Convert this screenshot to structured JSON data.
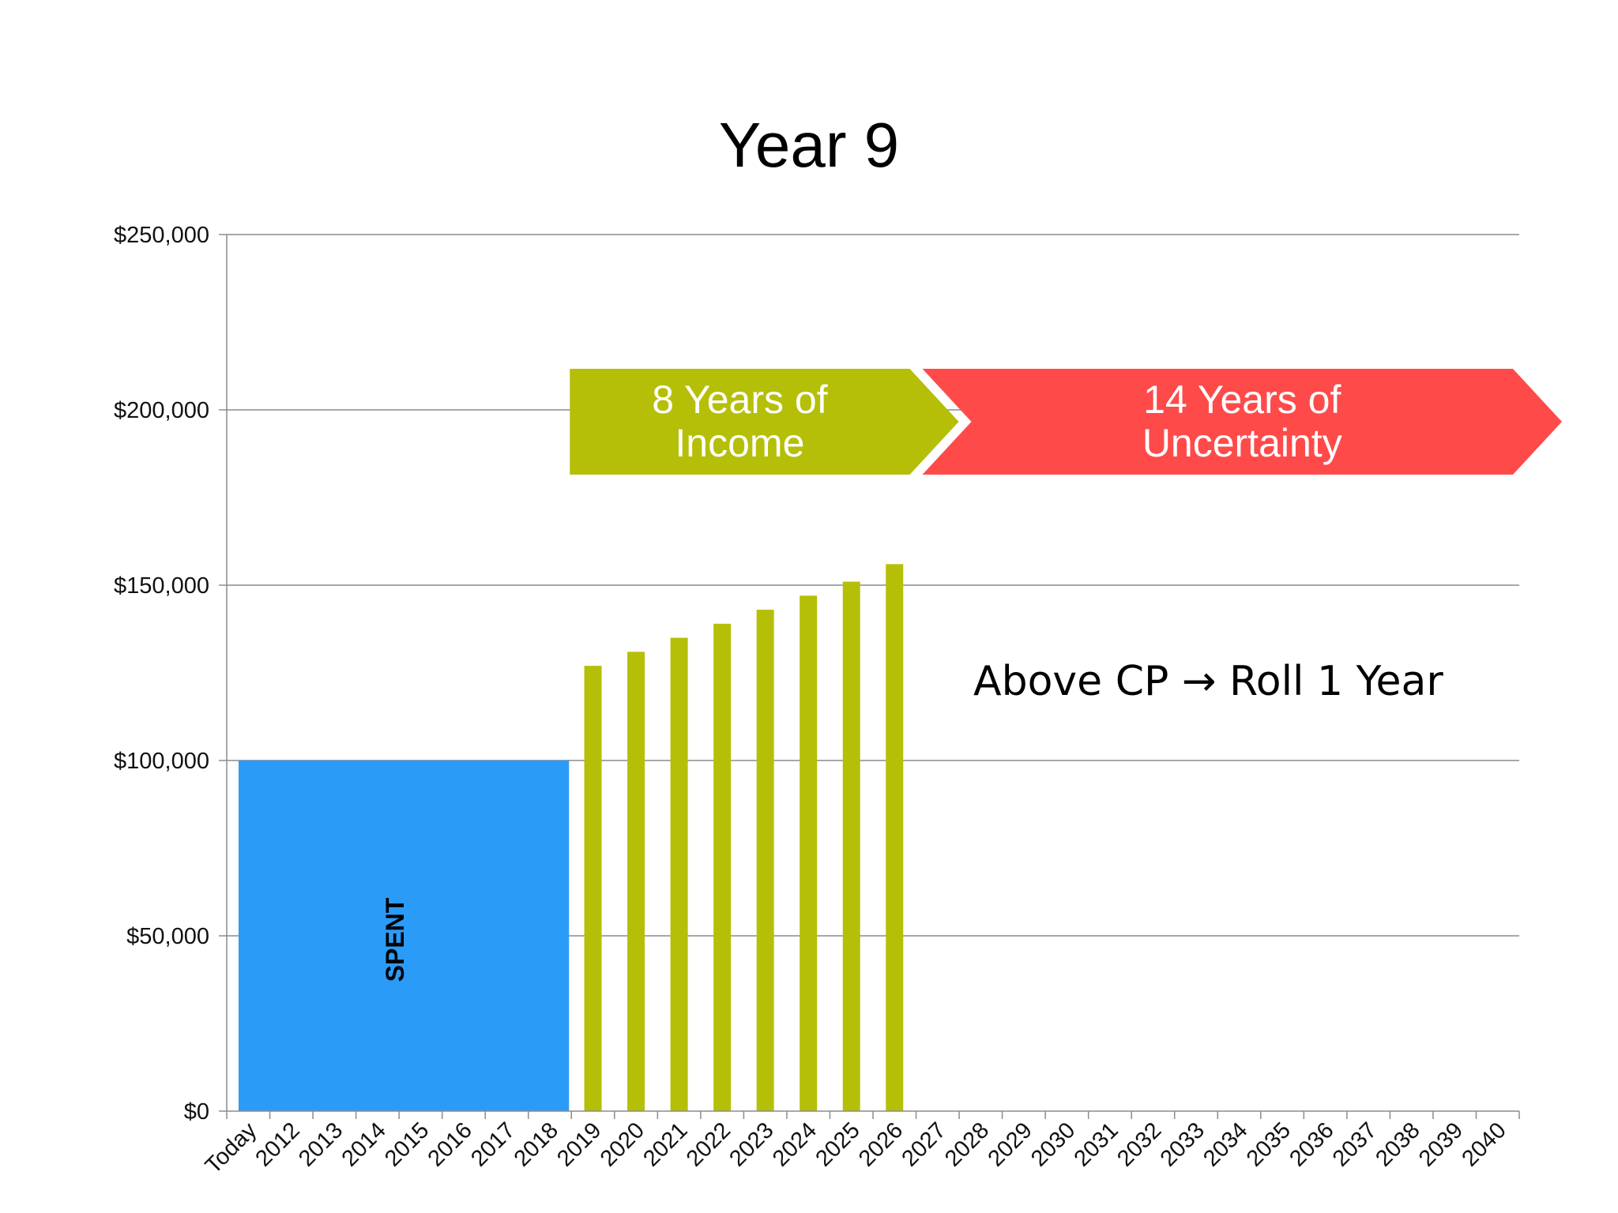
{
  "chart_data": {
    "type": "bar",
    "title": "Year 9",
    "categories": [
      "Today",
      "2012",
      "2013",
      "2014",
      "2015",
      "2016",
      "2017",
      "2018",
      "2019",
      "2020",
      "2021",
      "2022",
      "2023",
      "2024",
      "2025",
      "2026",
      "2027",
      "2028",
      "2029",
      "2030",
      "2031",
      "2032",
      "2033",
      "2034",
      "2035",
      "2036",
      "2037",
      "2038",
      "2039",
      "2040"
    ],
    "ylim": [
      0,
      250000
    ],
    "yticks": [
      0,
      50000,
      100000,
      150000,
      200000,
      250000
    ],
    "ytick_labels": [
      "$0",
      "$50,000",
      "$100,000",
      "$150,000",
      "$200,000",
      "$250,000"
    ],
    "grid": true,
    "spent_block": {
      "label": "SPENT",
      "from": "Today",
      "to": "2018",
      "value": 100000,
      "color": "#2b9bf8"
    },
    "series": [
      {
        "color": "#b5bf07",
        "points": [
          {
            "x": "2019",
            "y": 127000
          },
          {
            "x": "2020",
            "y": 131000
          },
          {
            "x": "2021",
            "y": 135000
          },
          {
            "x": "2022",
            "y": 139000
          },
          {
            "x": "2023",
            "y": 143000
          },
          {
            "x": "2024",
            "y": 147000
          },
          {
            "x": "2025",
            "y": 151000
          },
          {
            "x": "2026",
            "y": 156000
          }
        ]
      }
    ],
    "bands": [
      {
        "line1": "8 Years of",
        "line2": "Income",
        "from": "2019",
        "to": "2026",
        "color": "#b5bf07"
      },
      {
        "line1": "14 Years of",
        "line2": "Uncertainty",
        "from": "2027",
        "to": "2040",
        "color": "#ff4a4a"
      }
    ],
    "annotation": "Above CP → Roll 1 Year"
  }
}
